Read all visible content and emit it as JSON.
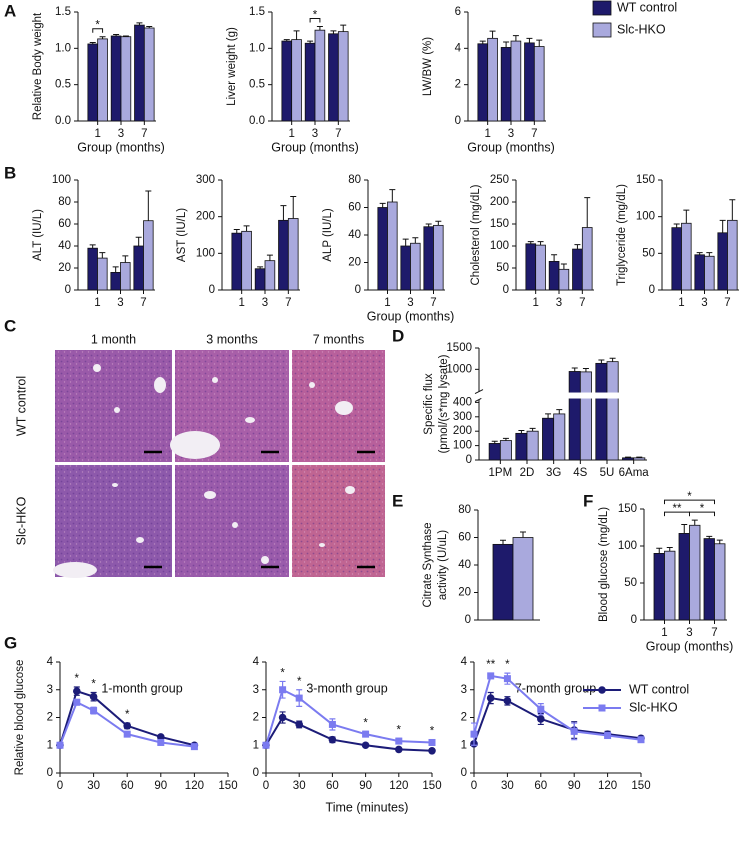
{
  "panels": [
    "A",
    "B",
    "C",
    "D",
    "E",
    "F",
    "G"
  ],
  "histology": {
    "columns": [
      "1 month",
      "3 months",
      "7 months"
    ],
    "rows": [
      "WT control",
      "Slc-HKO"
    ]
  },
  "chart_data": [
    {
      "type": "bar",
      "ylabel": "Relative Body weight",
      "xlabel": "Group (months)",
      "categories": [
        "1",
        "3",
        "7"
      ],
      "series": [
        {
          "name": "WT control",
          "color": "#1e1a6b",
          "values": [
            1.06,
            1.17,
            1.32
          ],
          "errors": [
            0.02,
            0.02,
            0.03
          ]
        },
        {
          "name": "Slc-HKO",
          "color": "#a9a9dd",
          "values": [
            1.13,
            1.16,
            1.28
          ],
          "errors": [
            0.03,
            0.01,
            0.02
          ]
        }
      ],
      "ylim": [
        0,
        1.5
      ],
      "yticks": [
        {
          "value": 0,
          "label": "0.0"
        },
        {
          "value": 0.5,
          "label": "0.5"
        },
        {
          "value": 1,
          "label": "1.0"
        },
        {
          "value": 1.5,
          "label": "1.5"
        }
      ],
      "annotations": [
        {
          "text": "*",
          "from": "1",
          "to": "1"
        }
      ]
    },
    {
      "type": "bar",
      "ylabel": "Liver weight (g)",
      "xlabel": "Group (months)",
      "categories": [
        "1",
        "3",
        "7"
      ],
      "series": [
        {
          "name": "WT control",
          "color": "#1e1a6b",
          "values": [
            1.1,
            1.07,
            1.2
          ],
          "errors": [
            0.02,
            0.03,
            0.04
          ]
        },
        {
          "name": "Slc-HKO",
          "color": "#a9a9dd",
          "values": [
            1.12,
            1.25,
            1.23
          ],
          "errors": [
            0.12,
            0.05,
            0.09
          ]
        }
      ],
      "ylim": [
        0,
        1.5
      ],
      "yticks": [
        {
          "value": 0,
          "label": "0.0"
        },
        {
          "value": 0.5,
          "label": "0.5"
        },
        {
          "value": 1,
          "label": "1.0"
        },
        {
          "value": 1.5,
          "label": "1.5"
        }
      ],
      "annotations": [
        {
          "text": "*",
          "from": "3",
          "to": "3"
        }
      ]
    },
    {
      "type": "bar",
      "ylabel": "LW/BW (%)",
      "xlabel": "Group (months)",
      "categories": [
        "1",
        "3",
        "7"
      ],
      "series": [
        {
          "name": "WT control",
          "color": "#1e1a6b",
          "values": [
            4.25,
            4.05,
            4.3
          ],
          "errors": [
            0.15,
            0.3,
            0.25
          ]
        },
        {
          "name": "Slc-HKO",
          "color": "#a9a9dd",
          "values": [
            4.55,
            4.4,
            4.1
          ],
          "errors": [
            0.4,
            0.3,
            0.35
          ]
        }
      ],
      "ylim": [
        0,
        6
      ],
      "yticks": [
        0,
        2,
        4,
        6
      ],
      "legend": "right"
    },
    {
      "type": "bar",
      "ylabel": "ALT (IU/L)",
      "categories": [
        "1",
        "3",
        "7"
      ],
      "series": [
        {
          "name": "WT control",
          "color": "#1e1a6b",
          "values": [
            38,
            16,
            40
          ],
          "errors": [
            3,
            5,
            8
          ]
        },
        {
          "name": "Slc-HKO",
          "color": "#a9a9dd",
          "values": [
            29,
            25,
            63
          ],
          "errors": [
            5,
            6,
            27
          ]
        }
      ],
      "ylim": [
        0,
        100
      ],
      "yticks": [
        0,
        20,
        40,
        60,
        80,
        100
      ]
    },
    {
      "type": "bar",
      "ylabel": "AST (IU/L)",
      "categories": [
        "1",
        "3",
        "7"
      ],
      "series": [
        {
          "name": "WT control",
          "color": "#1e1a6b",
          "values": [
            155,
            58,
            190
          ],
          "errors": [
            10,
            5,
            40
          ]
        },
        {
          "name": "Slc-HKO",
          "color": "#a9a9dd",
          "values": [
            160,
            80,
            195
          ],
          "errors": [
            15,
            15,
            60
          ]
        }
      ],
      "ylim": [
        0,
        300
      ],
      "yticks": [
        0,
        100,
        200,
        300
      ]
    },
    {
      "type": "bar",
      "ylabel": "ALP (IU/L)",
      "xlabel": "Group (months)",
      "categories": [
        "1",
        "3",
        "7"
      ],
      "series": [
        {
          "name": "WT control",
          "color": "#1e1a6b",
          "values": [
            60,
            32,
            46
          ],
          "errors": [
            3,
            5,
            2
          ]
        },
        {
          "name": "Slc-HKO",
          "color": "#a9a9dd",
          "values": [
            64,
            34,
            47
          ],
          "errors": [
            9,
            4,
            3
          ]
        }
      ],
      "ylim": [
        0,
        80
      ],
      "yticks": [
        0,
        20,
        40,
        60,
        80
      ]
    },
    {
      "type": "bar",
      "ylabel": "Cholesterol (mg/dL)",
      "categories": [
        "1",
        "3",
        "7"
      ],
      "series": [
        {
          "name": "WT control",
          "color": "#1e1a6b",
          "values": [
            105,
            65,
            93
          ],
          "errors": [
            5,
            15,
            10
          ]
        },
        {
          "name": "Slc-HKO",
          "color": "#a9a9dd",
          "values": [
            102,
            47,
            142
          ],
          "errors": [
            8,
            12,
            68
          ]
        }
      ],
      "ylim": [
        0,
        250
      ],
      "yticks": [
        0,
        50,
        100,
        150,
        200,
        250
      ]
    },
    {
      "type": "bar",
      "ylabel": "Triglyceride (mg/dL)",
      "categories": [
        "1",
        "3",
        "7"
      ],
      "series": [
        {
          "name": "WT control",
          "color": "#1e1a6b",
          "values": [
            85,
            48,
            78
          ],
          "errors": [
            5,
            3,
            17
          ]
        },
        {
          "name": "Slc-HKO",
          "color": "#a9a9dd",
          "values": [
            91,
            46,
            95
          ],
          "errors": [
            18,
            5,
            28
          ]
        }
      ],
      "ylim": [
        0,
        150
      ],
      "yticks": [
        0,
        50,
        100,
        150
      ]
    },
    {
      "type": "bar",
      "ylabel": [
        "Specific flux",
        "(pmol/(s*mg lysate)"
      ],
      "categories": [
        "1PM",
        "2D",
        "3G",
        "4S",
        "5U",
        "6Ama"
      ],
      "series": [
        {
          "name": "WT control",
          "color": "#1e1a6b",
          "values": [
            115,
            185,
            290,
            950,
            1140,
            15
          ],
          "errors": [
            15,
            20,
            30,
            80,
            80,
            5
          ]
        },
        {
          "name": "Slc-HKO",
          "color": "#a9a9dd",
          "values": [
            135,
            200,
            320,
            940,
            1180,
            15
          ],
          "errors": [
            15,
            20,
            30,
            80,
            80,
            5
          ]
        }
      ],
      "ylim": [
        0,
        1500
      ],
      "ybreak": [
        420,
        480
      ],
      "yticks": [
        0,
        100,
        200,
        300,
        400,
        1000,
        1500
      ]
    },
    {
      "type": "bar",
      "ylabel": [
        "Citrate Synthase",
        "activity (U/uL)"
      ],
      "categories": [
        null
      ],
      "series": [
        {
          "name": "WT control",
          "color": "#1e1a6b",
          "values": [
            55
          ],
          "errors": [
            3
          ]
        },
        {
          "name": "Slc-HKO",
          "color": "#a9a9dd",
          "values": [
            60
          ],
          "errors": [
            4
          ]
        }
      ],
      "ylim": [
        0,
        80
      ],
      "yticks": [
        0,
        20,
        40,
        60,
        80
      ]
    },
    {
      "type": "bar",
      "ylabel": "Blood glucose (mg/dL)",
      "xlabel": "Group (months)",
      "categories": [
        "1",
        "3",
        "7"
      ],
      "series": [
        {
          "name": "WT control",
          "color": "#1e1a6b",
          "values": [
            90,
            117,
            110
          ],
          "errors": [
            7,
            12,
            3
          ]
        },
        {
          "name": "Slc-HKO",
          "color": "#a9a9dd",
          "values": [
            93,
            128,
            103
          ],
          "errors": [
            5,
            7,
            5
          ]
        }
      ],
      "ylim": [
        0,
        150
      ],
      "yticks": [
        0,
        50,
        100,
        150
      ],
      "annotations": [
        {
          "text": "*",
          "from": "1",
          "to": "7"
        },
        {
          "text": "**",
          "from": "1",
          "to": "3"
        },
        {
          "text": "*",
          "from": "3",
          "to": "7"
        }
      ]
    },
    {
      "type": "line",
      "title": "1-month group",
      "ylabel": "Relative blood glucose",
      "x": [
        0,
        15,
        30,
        60,
        90,
        120
      ],
      "series": [
        {
          "name": "WT control",
          "color": "#1c1c78",
          "marker": "circle",
          "values": [
            1,
            2.95,
            2.75,
            1.7,
            1.3,
            1.0
          ],
          "errors": [
            0.05,
            0.15,
            0.15,
            0.1,
            0.05,
            0.05
          ]
        },
        {
          "name": "Slc-HKO",
          "color": "#7b7bf0",
          "marker": "square",
          "values": [
            1,
            2.55,
            2.25,
            1.4,
            1.1,
            0.95
          ],
          "errors": [
            0.05,
            0.1,
            0.12,
            0.08,
            0.05,
            0.05
          ]
        }
      ],
      "xlim": [
        0,
        150
      ],
      "xticks": [
        0,
        30,
        60,
        90,
        120,
        150
      ],
      "ylim": [
        0,
        4
      ],
      "yticks": [
        0,
        1,
        2,
        3,
        4
      ],
      "annotations": [
        {
          "text": "*",
          "x": 15
        },
        {
          "text": "*",
          "x": 30
        },
        {
          "text": "*",
          "x": 60
        }
      ]
    },
    {
      "type": "line",
      "title": "3-month group",
      "xlabel": "Time (minutes)",
      "x": [
        0,
        15,
        30,
        60,
        90,
        120,
        150
      ],
      "series": [
        {
          "name": "WT control",
          "color": "#1c1c78",
          "marker": "circle",
          "values": [
            1,
            2.0,
            1.75,
            1.2,
            1.0,
            0.85,
            0.8
          ],
          "errors": [
            0.05,
            0.2,
            0.12,
            0.1,
            0.05,
            0.05,
            0.05
          ]
        },
        {
          "name": "Slc-HKO",
          "color": "#7b7bf0",
          "marker": "square",
          "values": [
            1,
            3.0,
            2.7,
            1.75,
            1.4,
            1.15,
            1.1
          ],
          "errors": [
            0.05,
            0.3,
            0.3,
            0.2,
            0.1,
            0.1,
            0.1
          ]
        }
      ],
      "xlim": [
        0,
        150
      ],
      "xticks": [
        0,
        30,
        60,
        90,
        120,
        150
      ],
      "ylim": [
        0,
        4
      ],
      "yticks": [
        0,
        1,
        2,
        3,
        4
      ],
      "annotations": [
        {
          "text": "*",
          "x": 15
        },
        {
          "text": "*",
          "x": 30
        },
        {
          "text": "*",
          "x": 90
        },
        {
          "text": "*",
          "x": 120
        },
        {
          "text": "*",
          "x": 150
        }
      ]
    },
    {
      "type": "line",
      "title": "7-month group",
      "x": [
        0,
        15,
        30,
        60,
        90,
        120,
        150
      ],
      "series": [
        {
          "name": "WT control",
          "color": "#1c1c78",
          "marker": "circle",
          "values": [
            1.05,
            2.7,
            2.6,
            1.95,
            1.55,
            1.4,
            1.25
          ],
          "errors": [
            0.05,
            0.2,
            0.15,
            0.2,
            0.3,
            0.1,
            0.08
          ]
        },
        {
          "name": "Slc-HKO",
          "color": "#7b7bf0",
          "marker": "square",
          "values": [
            1.4,
            3.5,
            3.4,
            2.3,
            1.5,
            1.35,
            1.2
          ],
          "errors": [
            0.4,
            0.1,
            0.2,
            0.2,
            0.3,
            0.1,
            0.08
          ]
        }
      ],
      "xlim": [
        0,
        150
      ],
      "xticks": [
        0,
        30,
        60,
        90,
        120,
        150
      ],
      "ylim": [
        0,
        4
      ],
      "yticks": [
        0,
        1,
        2,
        3,
        4
      ],
      "annotations": [
        {
          "text": "**",
          "x": 15
        },
        {
          "text": "*",
          "x": 30
        }
      ],
      "legend": "upper right"
    }
  ]
}
